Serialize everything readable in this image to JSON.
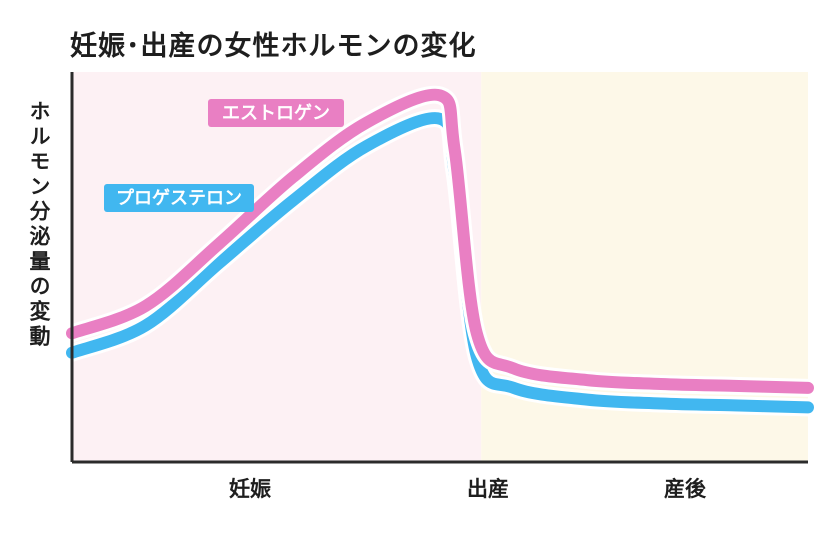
{
  "title": "妊娠･出産の女性ホルモンの変化",
  "chart_data": {
    "type": "line",
    "title": "妊娠･出産の女性ホルモンの変化",
    "xlabel": "",
    "ylabel": "ホルモン分泌量の変動",
    "categories": [
      "妊娠",
      "出産",
      "産後"
    ],
    "x_range": [
      0,
      100
    ],
    "ylim": [
      0,
      100
    ],
    "grid": false,
    "phases": [
      {
        "name": "妊娠",
        "from": 0,
        "to": 55.6,
        "color": "#fdf1f4"
      },
      {
        "name": "産後",
        "from": 55.6,
        "to": 100,
        "color": "#fdf8e8"
      }
    ],
    "series": [
      {
        "name": "エストロゲン",
        "color": "#e97fc3",
        "x": [
          0,
          10,
          20,
          30,
          40,
          50,
          52,
          55,
          60,
          70,
          80,
          90,
          100
        ],
        "y": [
          33,
          40,
          56,
          73,
          87,
          94,
          80,
          33,
          24,
          21,
          20,
          19.5,
          19
        ]
      },
      {
        "name": "プロゲステロン",
        "color": "#41b7f0",
        "x": [
          0,
          10,
          20,
          30,
          40,
          50,
          52,
          55,
          60,
          70,
          80,
          90,
          100
        ],
        "y": [
          28,
          35,
          51,
          67,
          81,
          88,
          74,
          27,
          19,
          16,
          15,
          14.5,
          14
        ]
      }
    ]
  }
}
